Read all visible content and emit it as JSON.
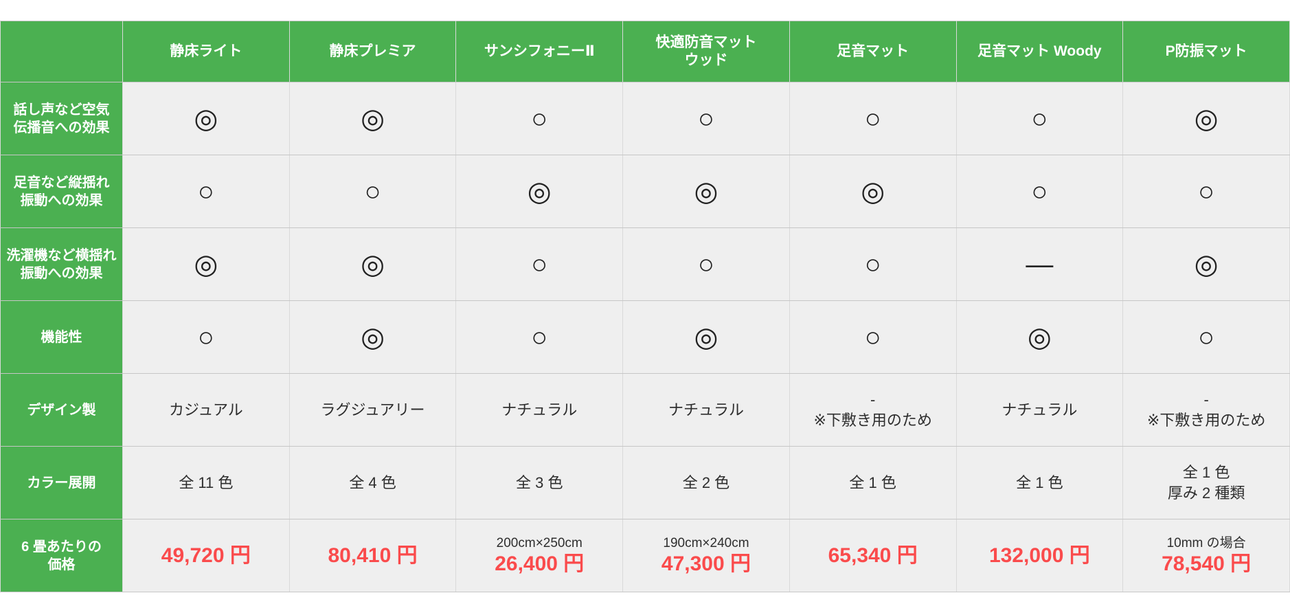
{
  "chart_data": {
    "type": "table",
    "products": [
      "静床ライト",
      "静床プレミア",
      "サンシフォニーⅡ",
      "快適防音マット\nウッド",
      "足音マット",
      "足音マット Woody",
      "P防振マット"
    ],
    "rows": [
      {
        "label": "話し声など空気\n伝播音への効果",
        "type": "symbol",
        "values": [
          "◎",
          "◎",
          "○",
          "○",
          "○",
          "○",
          "◎"
        ]
      },
      {
        "label": "足音など縦揺れ\n振動への効果",
        "type": "symbol",
        "values": [
          "○",
          "○",
          "◎",
          "◎",
          "◎",
          "○",
          "○"
        ]
      },
      {
        "label": "洗濯機など横揺れ\n振動への効果",
        "type": "symbol",
        "values": [
          "◎",
          "◎",
          "○",
          "○",
          "○",
          "—",
          "◎"
        ]
      },
      {
        "label": "機能性",
        "type": "symbol",
        "values": [
          "○",
          "◎",
          "○",
          "◎",
          "○",
          "◎",
          "○"
        ]
      },
      {
        "label": "デザイン製",
        "type": "text",
        "values": [
          "カジュアル",
          "ラグジュアリー",
          "ナチュラル",
          "ナチュラル",
          "-\n※下敷き用のため",
          "ナチュラル",
          "-\n※下敷き用のため"
        ]
      },
      {
        "label": "カラー展開",
        "type": "text",
        "values": [
          "全 11 色",
          "全 4 色",
          "全 3 色",
          "全 2 色",
          "全 1 色",
          "全 1 色",
          "全 1 色\n厚み 2 種類"
        ]
      },
      {
        "label": "6 畳あたりの\n価格",
        "type": "price",
        "values": [
          {
            "note": "",
            "price": "49,720 円"
          },
          {
            "note": "",
            "price": "80,410 円"
          },
          {
            "note": "200cm×250cm",
            "price": "26,400 円"
          },
          {
            "note": "190cm×240cm",
            "price": "47,300 円"
          },
          {
            "note": "",
            "price": "65,340 円"
          },
          {
            "note": "",
            "price": "132,000 円"
          },
          {
            "note": "10mm の場合",
            "price": "78,540 円"
          }
        ]
      }
    ],
    "legend_symbols": {
      "double_circle": "◎",
      "circle": "○",
      "dash": "—"
    }
  },
  "colors": {
    "header_green": "#4bb051",
    "cell_bg": "#efefef",
    "price_red": "#fa4b4c",
    "grid_line": "#c6c6c6",
    "text_dark": "#2e2e2e"
  }
}
